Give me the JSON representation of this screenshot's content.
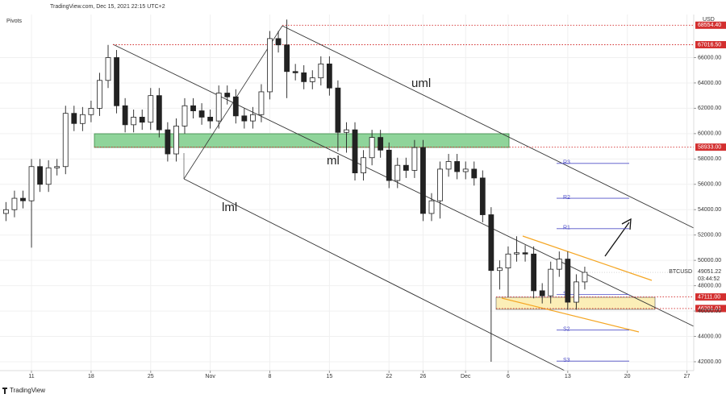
{
  "chart_data": {
    "type": "candlestick",
    "title": "TradingView.com, Dec 15, 2021 22:15 UTC+2",
    "indicator": "Pivots",
    "currency": "USD",
    "brand": "TradingView",
    "x": [
      8,
      9,
      10,
      11,
      12,
      13,
      14,
      15,
      16,
      17,
      18,
      19,
      20,
      21,
      22,
      23,
      24,
      25,
      26,
      27,
      28,
      29,
      30,
      31,
      32,
      33,
      34,
      35,
      36,
      37,
      38,
      39,
      40,
      41,
      42,
      43,
      44,
      45,
      46,
      47,
      48,
      49,
      50,
      51,
      52,
      53,
      54,
      55,
      56,
      57,
      58,
      59,
      60,
      61,
      62,
      63,
      64,
      65,
      66,
      67,
      68,
      69,
      70,
      71,
      72,
      73,
      74,
      75,
      76
    ],
    "open": [
      53700,
      54000,
      54900,
      54700,
      57400,
      56000,
      57300,
      57400,
      61600,
      60800,
      61500,
      62000,
      64200,
      66000,
      62200,
      60700,
      61300,
      60900,
      63000,
      60300,
      58400,
      60600,
      62200,
      61800,
      61300,
      61000,
      63200,
      62900,
      61400,
      61000,
      61500,
      63300,
      67500,
      67000,
      64900,
      64800,
      64100,
      64400,
      65500,
      63600,
      60100,
      60300,
      56900,
      58100,
      59700,
      58700,
      56300,
      57500,
      57100,
      58900,
      53700,
      54700,
      57200,
      57800,
      57000,
      57200,
      56500,
      53600,
      49200,
      49400,
      50500,
      50600,
      50500,
      47600,
      47200,
      49300,
      50100,
      46700,
      48300
    ],
    "high": [
      54600,
      55500,
      55500,
      58000,
      58000,
      57900,
      58000,
      62200,
      62200,
      62100,
      62600,
      64800,
      67000,
      66600,
      62800,
      61900,
      61900,
      63600,
      63600,
      60900,
      61200,
      62800,
      62800,
      62400,
      61900,
      63800,
      63800,
      63500,
      62000,
      62100,
      63900,
      68100,
      68100,
      69000,
      65500,
      65400,
      65000,
      66100,
      66100,
      64200,
      60900,
      60900,
      58700,
      60300,
      60300,
      59300,
      58100,
      58100,
      59500,
      59500,
      55300,
      57800,
      58400,
      58400,
      57800,
      57800,
      57100,
      54200,
      50000,
      51100,
      51900,
      51200,
      51100,
      48200,
      49900,
      50700,
      50700,
      48900,
      49500
    ],
    "low": [
      53100,
      53400,
      54100,
      51000,
      55400,
      55400,
      56700,
      56800,
      60200,
      60200,
      60900,
      61400,
      63600,
      61600,
      60100,
      60100,
      60300,
      60300,
      59700,
      57800,
      57800,
      60000,
      61200,
      60700,
      60400,
      60400,
      62300,
      60800,
      60400,
      60400,
      60900,
      62700,
      66400,
      62800,
      64200,
      63500,
      63500,
      63800,
      63000,
      58600,
      58500,
      56300,
      56300,
      57500,
      58100,
      55700,
      55700,
      56500,
      56500,
      53100,
      53100,
      53300,
      56600,
      56400,
      56400,
      55900,
      53000,
      42000,
      47700,
      47100,
      49900,
      49900,
      47000,
      46600,
      46600,
      48700,
      46100,
      46100,
      47700
    ],
    "close": [
      54000,
      54900,
      54700,
      57400,
      56000,
      57300,
      57400,
      61600,
      60800,
      61500,
      62000,
      64200,
      66000,
      62200,
      60700,
      61300,
      60900,
      63000,
      60300,
      58400,
      60600,
      62200,
      61800,
      61300,
      61000,
      63200,
      62900,
      61400,
      61000,
      61500,
      63300,
      67500,
      67000,
      64900,
      64800,
      64100,
      64400,
      65500,
      63600,
      60100,
      60300,
      56900,
      58100,
      59700,
      58700,
      56300,
      57500,
      57100,
      58900,
      53700,
      54700,
      57200,
      57800,
      57000,
      57200,
      56500,
      53600,
      49200,
      49400,
      50500,
      50600,
      50500,
      47600,
      47200,
      49300,
      50100,
      46700,
      48300,
      49051
    ],
    "up_color": "#ffffff",
    "down_color": "#222222",
    "wick_color": "#222222",
    "xlim": [
      7.3,
      88.8
    ],
    "ylim": [
      41300,
      69400
    ],
    "xticks": [
      {
        "value": 11,
        "label": "11"
      },
      {
        "value": 18,
        "label": "18"
      },
      {
        "value": 25,
        "label": "25"
      },
      {
        "value": 32,
        "label": "Nov"
      },
      {
        "value": 39,
        "label": "8"
      },
      {
        "value": 46,
        "label": "15"
      },
      {
        "value": 53,
        "label": "22"
      },
      {
        "value": 57,
        "label": "26"
      },
      {
        "value": 62,
        "label": "Dec"
      },
      {
        "value": 67,
        "label": "6"
      },
      {
        "value": 74,
        "label": "13"
      },
      {
        "value": 81,
        "label": "20"
      },
      {
        "value": 88,
        "label": "27"
      }
    ],
    "yticks": [
      {
        "value": 42000,
        "label": "42000.00"
      },
      {
        "value": 44000,
        "label": "44000.00"
      },
      {
        "value": 46000,
        "label": "46000.00"
      },
      {
        "value": 48000,
        "label": "48000.00"
      },
      {
        "value": 50000,
        "label": "50000.00"
      },
      {
        "value": 52000,
        "label": "52000.00"
      },
      {
        "value": 54000,
        "label": "54000.00"
      },
      {
        "value": 56000,
        "label": "56000.00"
      },
      {
        "value": 58000,
        "label": "58000.00"
      },
      {
        "value": 60000,
        "label": "60000.00"
      },
      {
        "value": 62000,
        "label": "62000.00"
      },
      {
        "value": 64000,
        "label": "64000.00"
      },
      {
        "value": 66000,
        "label": "66000.00"
      }
    ],
    "grid": true,
    "price_levels": [
      {
        "value": 68554.4,
        "label": "68554.40"
      },
      {
        "value": 67016.5,
        "label": "67016.50"
      },
      {
        "value": 58933,
        "label": "58933.00"
      },
      {
        "value": 47111,
        "label": "47111.00"
      },
      {
        "value": 46201.01,
        "label": "46201.01"
      }
    ],
    "level_color": "#d32f2f",
    "pivots": [
      {
        "value": 57650,
        "label": "R3"
      },
      {
        "value": 54900,
        "label": "R2"
      },
      {
        "value": 52500,
        "label": "R1"
      },
      {
        "value": 47300,
        "label": "S1"
      },
      {
        "value": 44500,
        "label": "S2"
      },
      {
        "value": 42050,
        "label": "S3"
      }
    ],
    "pivot_color": "#5050c8",
    "last_price": {
      "symbol": "BTCUSD",
      "value": 49051.22,
      "countdown": "03:44:52"
    },
    "annotations": [
      "uml",
      "ml",
      "lml"
    ]
  }
}
